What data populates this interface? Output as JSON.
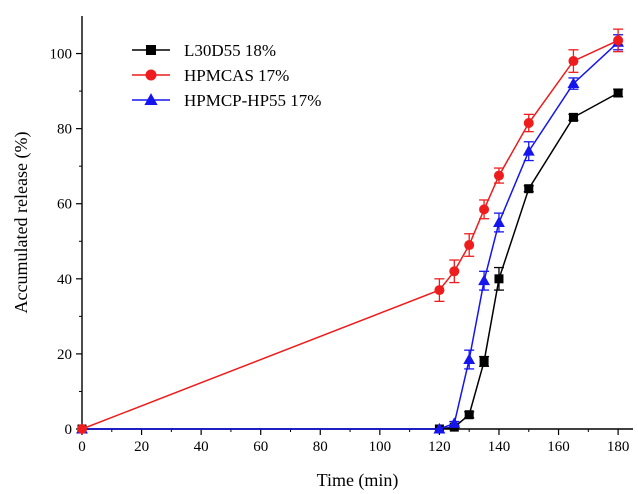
{
  "chart_data": {
    "type": "line",
    "title": "",
    "xlabel": "Time (min)",
    "ylabel": "Accumulated release (%)",
    "xlim": [
      0,
      185
    ],
    "ylim": [
      0,
      110
    ],
    "xticks": [
      0,
      20,
      40,
      60,
      80,
      100,
      120,
      140,
      160,
      180
    ],
    "yticks": [
      0,
      20,
      40,
      60,
      80,
      100
    ],
    "grid": false,
    "legend_position": "top-left",
    "series": [
      {
        "name": "L30D55 18%",
        "color": "#000000",
        "marker": "square",
        "x": [
          0,
          120,
          125,
          130,
          135,
          140,
          150,
          165,
          180
        ],
        "y": [
          0,
          0,
          0.5,
          3.8,
          18,
          40,
          64,
          83,
          89.5
        ],
        "err": [
          0,
          0,
          0.3,
          0.8,
          1.3,
          3,
          0.8,
          0.8,
          1
        ]
      },
      {
        "name": "HPMCAS 17%",
        "color": "#ee1c1c",
        "marker": "circle",
        "x": [
          0,
          120,
          125,
          130,
          135,
          140,
          150,
          165,
          180
        ],
        "y": [
          0,
          37,
          42,
          49,
          58.5,
          67.5,
          81.5,
          98,
          103.5
        ],
        "err": [
          0,
          3,
          3,
          3,
          2.5,
          2,
          2.3,
          3,
          3
        ]
      },
      {
        "name": "HPMCP-HP55 17%",
        "color": "#1515ee",
        "marker": "triangle",
        "x": [
          0,
          120,
          125,
          130,
          135,
          140,
          150,
          165,
          180
        ],
        "y": [
          0,
          0,
          1.5,
          18.5,
          39.5,
          55,
          74,
          92,
          103
        ],
        "err": [
          0,
          0,
          0.5,
          2.5,
          2.5,
          2.5,
          2.5,
          1.5,
          2
        ]
      }
    ]
  }
}
